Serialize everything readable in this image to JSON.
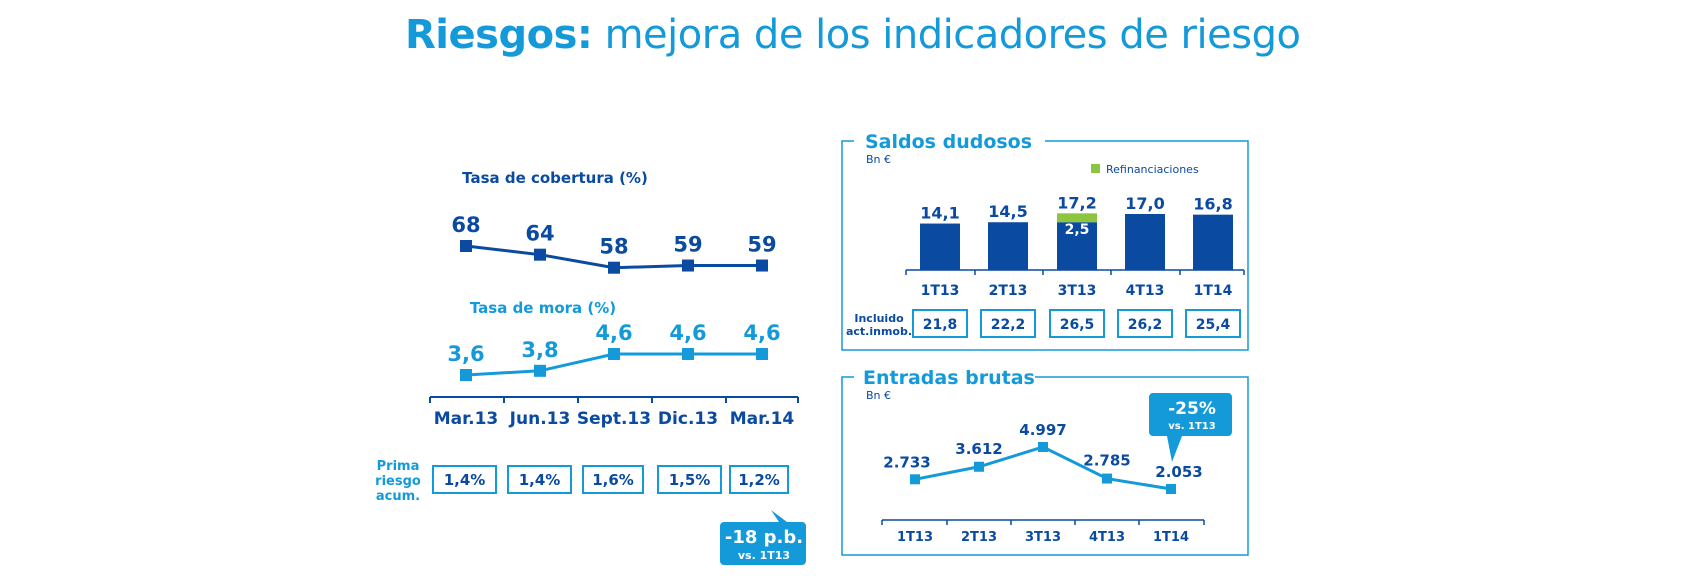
{
  "title": {
    "bold": "Riesgos:",
    "rest": " mejora de los indicadores de riesgo"
  },
  "colors": {
    "dark_blue": "#0a4aa0",
    "light_blue": "#149ad9",
    "green": "#8cc63f",
    "white": "#ffffff"
  },
  "chart_data": [
    {
      "type": "line",
      "title": "",
      "categories": [
        "Mar.13",
        "Jun.13",
        "Sept.13",
        "Dic.13",
        "Mar.14"
      ],
      "series": [
        {
          "name": "Tasa de cobertura (%)",
          "values": [
            68,
            64,
            58,
            59,
            59
          ],
          "labels": [
            "68",
            "64",
            "58",
            "59",
            "59"
          ]
        },
        {
          "name": "Tasa de mora (%)",
          "values": [
            3.6,
            3.8,
            4.6,
            4.6,
            4.6
          ],
          "labels": [
            "3,6",
            "3,8",
            "4,6",
            "4,6",
            "4,6"
          ]
        }
      ],
      "table": {
        "label_lines": [
          "Prima",
          "riesgo",
          "acum."
        ],
        "values": [
          "1,4%",
          "1,4%",
          "1,6%",
          "1,5%",
          "1,2%"
        ]
      },
      "callout": {
        "main": "-18 p.b.",
        "sub": "vs. 1T13"
      }
    },
    {
      "type": "bar",
      "title": "Saldos dudosos",
      "unit": "Bn €",
      "categories": [
        "1T13",
        "2T13",
        "3T13",
        "4T13",
        "1T14"
      ],
      "series": [
        {
          "name": "",
          "values": [
            14.1,
            14.5,
            17.2,
            17.0,
            16.8
          ],
          "labels": [
            "14,1",
            "14,5",
            "17,2",
            "17,0",
            "16,8"
          ]
        },
        {
          "name": "Refinanciaciones",
          "values": [
            0,
            0,
            2.5,
            0,
            0
          ]
        }
      ],
      "inner_label": {
        "index": 2,
        "text": "2,5"
      },
      "legend": "top-right",
      "table": {
        "label_lines": [
          "Incluido",
          "act.inmob."
        ],
        "values": [
          "21,8",
          "22,2",
          "26,5",
          "26,2",
          "25,4"
        ]
      }
    },
    {
      "type": "line",
      "title": "Entradas brutas",
      "unit": "Bn €",
      "categories": [
        "1T13",
        "2T13",
        "3T13",
        "4T13",
        "1T14"
      ],
      "series": [
        {
          "name": "",
          "values": [
            2733,
            3612,
            4997,
            2785,
            2053
          ],
          "labels": [
            "2.733",
            "3.612",
            "4.997",
            "2.785",
            "2.053"
          ]
        }
      ],
      "callout": {
        "main": "-25%",
        "sub": "vs. 1T13"
      }
    }
  ]
}
